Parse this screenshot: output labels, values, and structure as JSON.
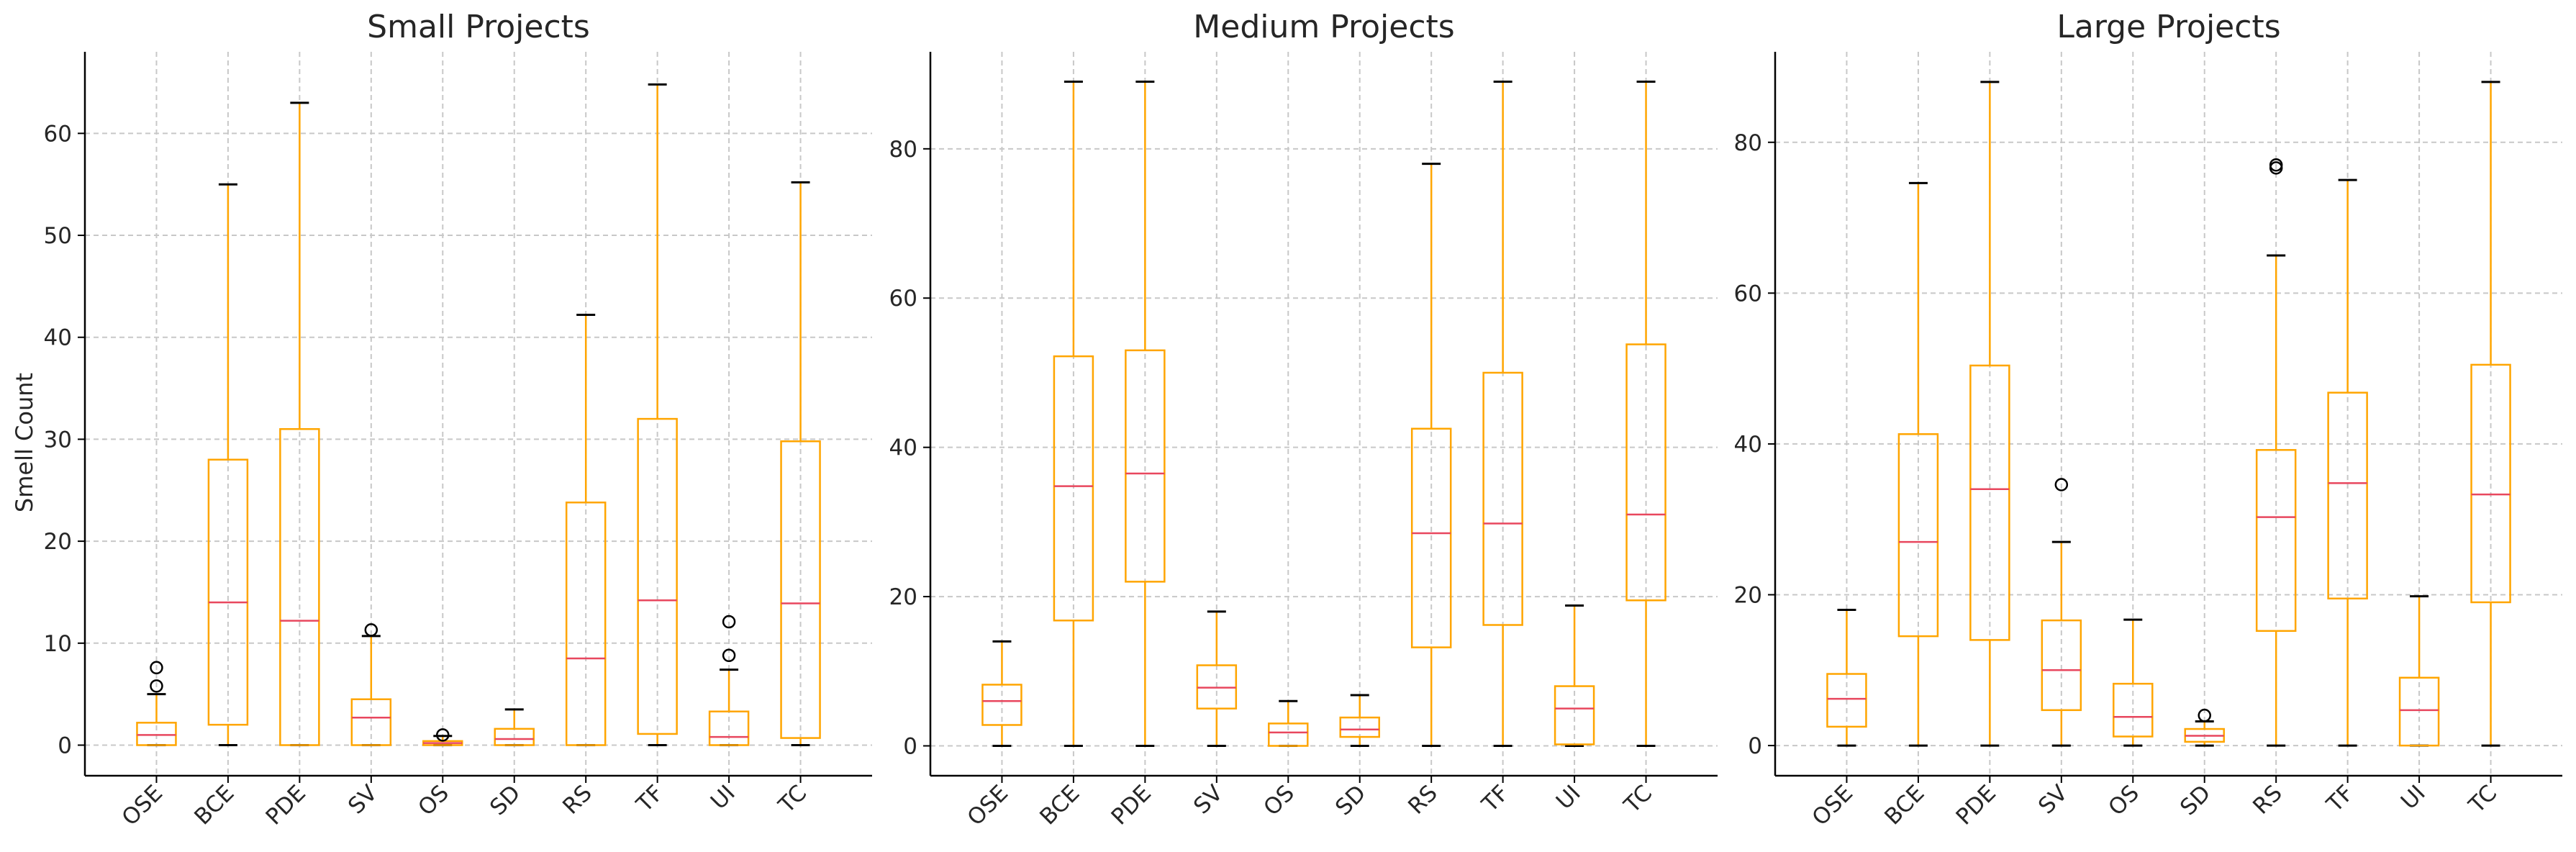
{
  "figure": {
    "ylabel": "Smell Count",
    "colors": {
      "box": "#FFA500",
      "median": "#E8475E",
      "cap": "#000000",
      "grid": "#c8c8c8",
      "axis": "#000000"
    }
  },
  "chart_data": [
    {
      "type": "box",
      "title": "Small Projects",
      "ylabel": "Smell Count",
      "ylim": [
        -3,
        68
      ],
      "yticks": [
        0,
        10,
        20,
        30,
        40,
        50,
        60
      ],
      "grid": true,
      "categories": [
        "OSE",
        "BCE",
        "PDE",
        "SV",
        "OS",
        "SD",
        "RS",
        "TF",
        "UI",
        "TC"
      ],
      "boxes": [
        {
          "whisker_low": 0,
          "q1": 0,
          "median": 1,
          "q3": 2.2,
          "whisker_high": 5,
          "outliers": [
            5.8,
            7.6
          ]
        },
        {
          "whisker_low": 0,
          "q1": 2,
          "median": 14,
          "q3": 28,
          "whisker_high": 55,
          "outliers": []
        },
        {
          "whisker_low": 0,
          "q1": 0,
          "median": 12.2,
          "q3": 31,
          "whisker_high": 63,
          "outliers": []
        },
        {
          "whisker_low": 0,
          "q1": 0,
          "median": 2.7,
          "q3": 4.5,
          "whisker_high": 10.7,
          "outliers": [
            11.3
          ]
        },
        {
          "whisker_low": 0,
          "q1": 0,
          "median": 0.2,
          "q3": 0.4,
          "whisker_high": 0.9,
          "outliers": [
            1
          ]
        },
        {
          "whisker_low": 0,
          "q1": 0,
          "median": 0.6,
          "q3": 1.6,
          "whisker_high": 3.5,
          "outliers": []
        },
        {
          "whisker_low": 0,
          "q1": 0,
          "median": 8.5,
          "q3": 23.8,
          "whisker_high": 42.2,
          "outliers": []
        },
        {
          "whisker_low": 0,
          "q1": 1.1,
          "median": 14.2,
          "q3": 32,
          "whisker_high": 64.8,
          "outliers": []
        },
        {
          "whisker_low": 0,
          "q1": 0,
          "median": 0.8,
          "q3": 3.3,
          "whisker_high": 7.4,
          "outliers": [
            8.8,
            12.1
          ]
        },
        {
          "whisker_low": 0,
          "q1": 0.7,
          "median": 13.9,
          "q3": 29.8,
          "whisker_high": 55.2,
          "outliers": []
        }
      ]
    },
    {
      "type": "box",
      "title": "Medium Projects",
      "ylim": [
        -4,
        93
      ],
      "yticks": [
        0,
        20,
        40,
        60,
        80
      ],
      "grid": true,
      "categories": [
        "OSE",
        "BCE",
        "PDE",
        "SV",
        "OS",
        "SD",
        "RS",
        "TF",
        "UI",
        "TC"
      ],
      "boxes": [
        {
          "whisker_low": 0,
          "q1": 2.8,
          "median": 6,
          "q3": 8.2,
          "whisker_high": 14,
          "outliers": []
        },
        {
          "whisker_low": 0,
          "q1": 16.8,
          "median": 34.8,
          "q3": 52.2,
          "whisker_high": 89,
          "outliers": []
        },
        {
          "whisker_low": 0,
          "q1": 22,
          "median": 36.5,
          "q3": 53,
          "whisker_high": 89,
          "outliers": []
        },
        {
          "whisker_low": 0,
          "q1": 5,
          "median": 7.8,
          "q3": 10.8,
          "whisker_high": 18,
          "outliers": []
        },
        {
          "whisker_low": 0,
          "q1": 0,
          "median": 1.8,
          "q3": 3,
          "whisker_high": 6,
          "outliers": []
        },
        {
          "whisker_low": 0,
          "q1": 1.2,
          "median": 2.2,
          "q3": 3.8,
          "whisker_high": 6.8,
          "outliers": []
        },
        {
          "whisker_low": 0,
          "q1": 13.2,
          "median": 28.5,
          "q3": 42.5,
          "whisker_high": 78,
          "outliers": []
        },
        {
          "whisker_low": 0,
          "q1": 16.2,
          "median": 29.8,
          "q3": 50,
          "whisker_high": 89,
          "outliers": []
        },
        {
          "whisker_low": 0,
          "q1": 0.2,
          "median": 5,
          "q3": 8,
          "whisker_high": 18.8,
          "outliers": []
        },
        {
          "whisker_low": 0,
          "q1": 19.5,
          "median": 31,
          "q3": 53.8,
          "whisker_high": 89,
          "outliers": []
        }
      ]
    },
    {
      "type": "box",
      "title": "Large Projects",
      "ylim": [
        -4,
        92
      ],
      "yticks": [
        0,
        20,
        40,
        60,
        80
      ],
      "grid": true,
      "categories": [
        "OSE",
        "BCE",
        "PDE",
        "SV",
        "OS",
        "SD",
        "RS",
        "TF",
        "UI",
        "TC"
      ],
      "boxes": [
        {
          "whisker_low": 0,
          "q1": 2.5,
          "median": 6.2,
          "q3": 9.5,
          "whisker_high": 18,
          "outliers": []
        },
        {
          "whisker_low": 0,
          "q1": 14.5,
          "median": 27,
          "q3": 41.3,
          "whisker_high": 74.6,
          "outliers": []
        },
        {
          "whisker_low": 0,
          "q1": 14,
          "median": 34,
          "q3": 50.4,
          "whisker_high": 88,
          "outliers": []
        },
        {
          "whisker_low": 0,
          "q1": 4.7,
          "median": 10,
          "q3": 16.6,
          "whisker_high": 27,
          "outliers": [
            34.6
          ]
        },
        {
          "whisker_low": 0,
          "q1": 1.2,
          "median": 3.8,
          "q3": 8.2,
          "whisker_high": 16.7,
          "outliers": []
        },
        {
          "whisker_low": 0,
          "q1": 0.5,
          "median": 1.3,
          "q3": 2.2,
          "whisker_high": 3.2,
          "outliers": [
            4
          ]
        },
        {
          "whisker_low": 0,
          "q1": 15.2,
          "median": 30.3,
          "q3": 39.2,
          "whisker_high": 65,
          "outliers": [
            76.6,
            77
          ]
        },
        {
          "whisker_low": 0,
          "q1": 19.5,
          "median": 34.8,
          "q3": 46.8,
          "whisker_high": 75,
          "outliers": []
        },
        {
          "whisker_low": 0,
          "q1": 0,
          "median": 4.7,
          "q3": 9,
          "whisker_high": 19.8,
          "outliers": []
        },
        {
          "whisker_low": 0,
          "q1": 19,
          "median": 33.3,
          "q3": 50.5,
          "whisker_high": 88,
          "outliers": []
        }
      ]
    }
  ]
}
